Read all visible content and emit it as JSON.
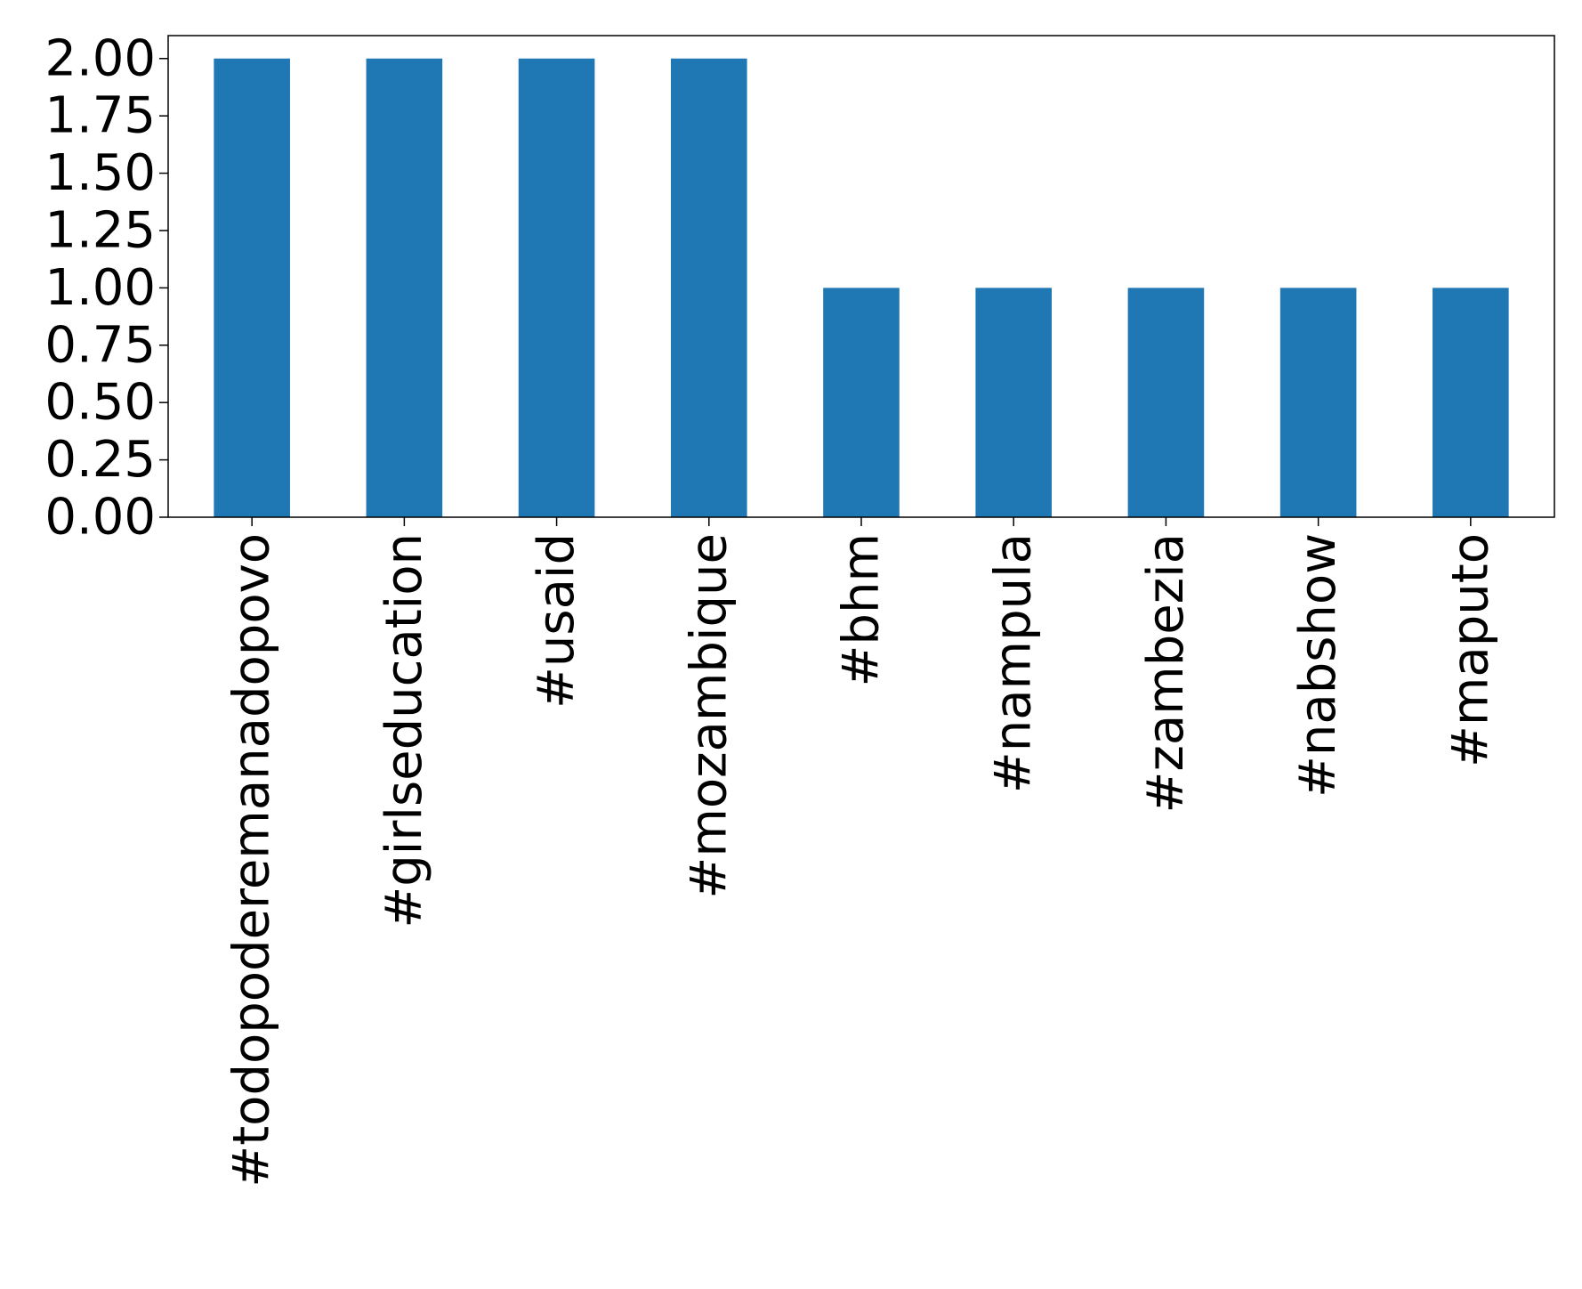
{
  "chart_data": {
    "type": "bar",
    "title": "",
    "xlabel": "",
    "ylabel": "",
    "categories": [
      "#todopoderemanadopovo",
      "#girlseducation",
      "#usaid",
      "#mozambique",
      "#bhm",
      "#nampula",
      "#zambezia",
      "#nabshow",
      "#maputo"
    ],
    "values": [
      2,
      2,
      2,
      2,
      1,
      1,
      1,
      1,
      1
    ],
    "ylim": [
      0,
      2.1
    ],
    "yticks": [
      "0.00",
      "0.25",
      "0.50",
      "0.75",
      "1.00",
      "1.25",
      "1.50",
      "1.75",
      "2.00"
    ],
    "legend": "none",
    "grid": false,
    "colors": {
      "bar": "#1f77b4",
      "axis": "#000000",
      "background": "#ffffff"
    }
  }
}
